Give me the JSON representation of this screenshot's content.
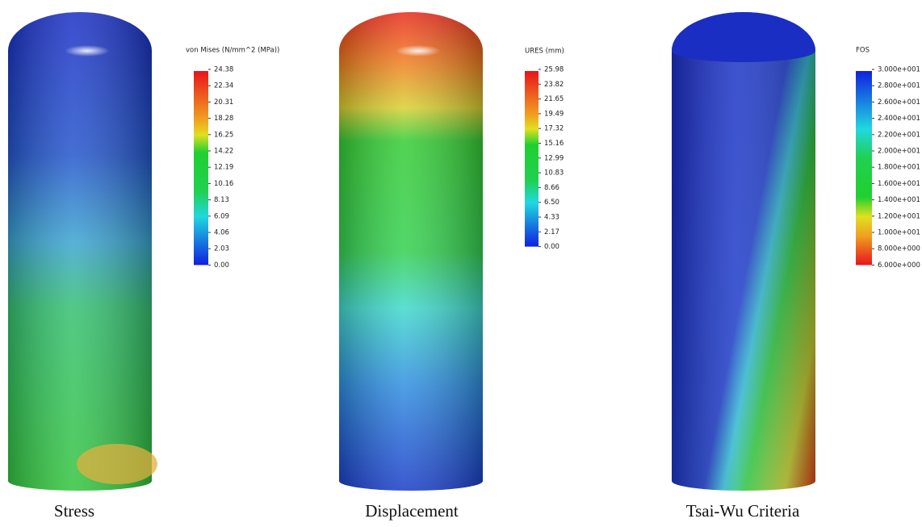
{
  "panels": [
    {
      "caption": "Stress",
      "legend": {
        "title": "von Mises (N/mm^2 (MPa))",
        "ticks": [
          "24.38",
          "22.34",
          "20.31",
          "18.28",
          "16.25",
          "14.22",
          "12.19",
          "10.16",
          "8.13",
          "6.09",
          "4.06",
          "2.03",
          "0.00"
        ]
      }
    },
    {
      "caption": "Displacement",
      "legend": {
        "title": "URES (mm)",
        "ticks": [
          "25.98",
          "23.82",
          "21.65",
          "19.49",
          "17.32",
          "15.16",
          "12.99",
          "10.83",
          "8.66",
          "6.50",
          "4.33",
          "2.17",
          "0.00"
        ]
      }
    },
    {
      "caption": "Tsai-Wu Criteria",
      "legend": {
        "title": "FOS",
        "ticks": [
          "3.000e+001",
          "2.800e+001",
          "2.600e+001",
          "2.400e+001",
          "2.200e+001",
          "2.000e+001",
          "1.800e+001",
          "1.600e+001",
          "1.400e+001",
          "1.200e+001",
          "1.000e+001",
          "8.000e+000",
          "6.000e+000"
        ]
      }
    }
  ]
}
